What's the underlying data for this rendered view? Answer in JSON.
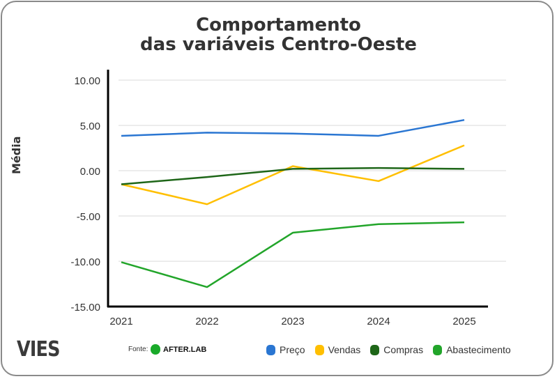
{
  "chart_data": {
    "type": "line",
    "title": [
      "Comportamento",
      "das variáveis Centro-Oeste"
    ],
    "xlabel": "",
    "ylabel": "Média",
    "x": [
      "2021",
      "2022",
      "2023",
      "2024",
      "2025"
    ],
    "ylim": [
      -15,
      10
    ],
    "yticks": [
      "10.00",
      "5.00",
      "0.00",
      "-5.00",
      "-10.00",
      "-15.00"
    ],
    "ytick_values": [
      10,
      5,
      0,
      -5,
      -10,
      -15
    ],
    "grid": true,
    "legend_position": "bottom-right",
    "series": [
      {
        "name": "Preço",
        "color": "#2a76d2",
        "values": [
          3.85,
          4.2,
          4.1,
          3.85,
          5.6
        ]
      },
      {
        "name": "Vendas",
        "color": "#ffbf00",
        "values": [
          -1.5,
          -3.7,
          0.5,
          -1.15,
          2.8
        ]
      },
      {
        "name": "Compras",
        "color": "#1e6618",
        "values": [
          -1.5,
          -0.7,
          0.2,
          0.3,
          0.2
        ]
      },
      {
        "name": "Abastecimento",
        "color": "#22a52a",
        "values": [
          -10.1,
          -12.85,
          -6.85,
          -5.9,
          -5.7
        ]
      }
    ]
  },
  "footer": {
    "brand": "VIES",
    "source_label": "Fonte:",
    "source_name": "AFTER.LAB"
  }
}
